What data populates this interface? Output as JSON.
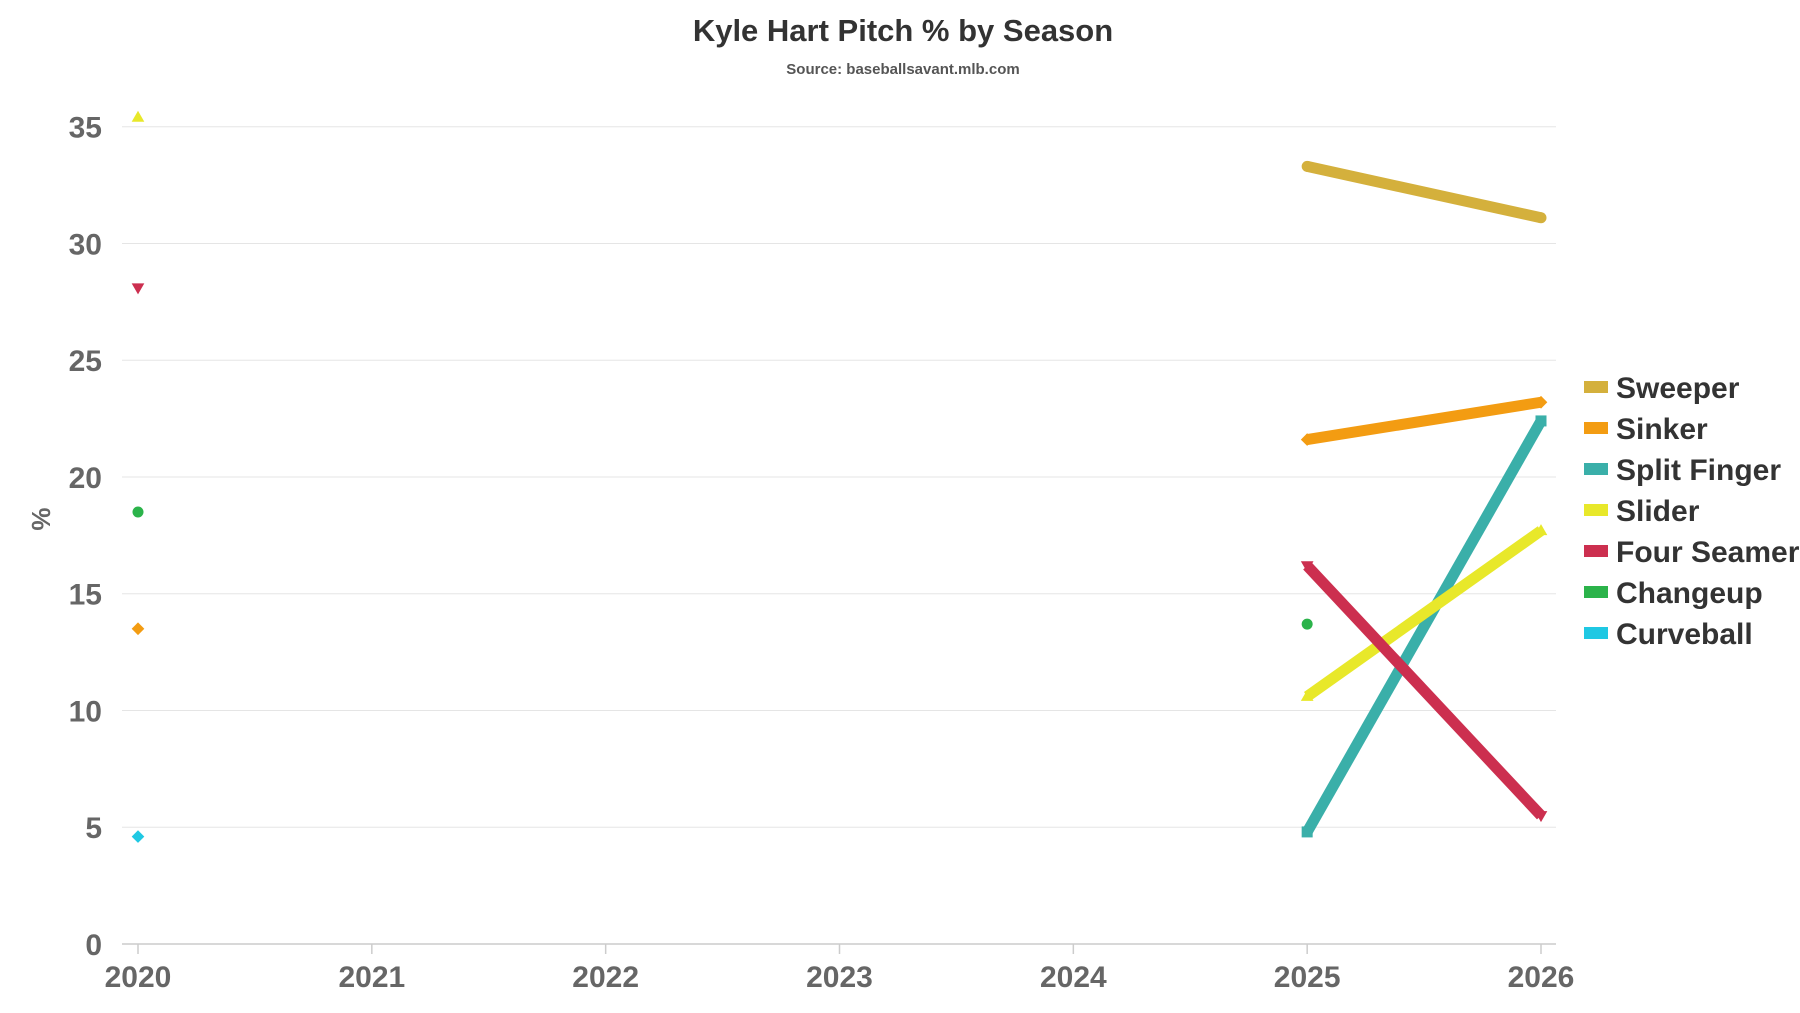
{
  "chart_data": {
    "type": "line",
    "title": "Kyle Hart Pitch % by Season",
    "subtitle": "Source: baseballsavant.mlb.com",
    "xlabel": "",
    "ylabel": "%",
    "x": [
      2020,
      2021,
      2022,
      2023,
      2024,
      2025,
      2026
    ],
    "x_tick_labels": [
      "2020",
      "2021",
      "2022",
      "2023",
      "2024",
      "2025",
      "2026"
    ],
    "ylim": [
      0,
      37
    ],
    "y_ticks": [
      0,
      5,
      10,
      15,
      20,
      25,
      30,
      35
    ],
    "y_tick_labels": [
      "0",
      "5",
      "10",
      "15",
      "20",
      "25",
      "30",
      "35"
    ],
    "grid": "horizontal",
    "legend_position": "right",
    "series": [
      {
        "name": "Sweeper",
        "color": "#d4b03c",
        "marker": "circle",
        "values": [
          null,
          null,
          null,
          null,
          null,
          33.3,
          31.1
        ]
      },
      {
        "name": "Sinker",
        "color": "#f39c12",
        "marker": "diamond",
        "values": [
          13.5,
          null,
          null,
          null,
          null,
          21.6,
          23.2
        ]
      },
      {
        "name": "Split Finger",
        "color": "#3aafa9",
        "marker": "square",
        "values": [
          null,
          null,
          null,
          null,
          null,
          4.8,
          22.4
        ]
      },
      {
        "name": "Slider",
        "color": "#e8e82a",
        "marker": "triangle-up",
        "values": [
          35.4,
          null,
          null,
          null,
          null,
          10.6,
          17.7
        ]
      },
      {
        "name": "Four Seamer",
        "color": "#cc2f4f",
        "marker": "triangle-down",
        "values": [
          28.1,
          null,
          null,
          null,
          null,
          16.2,
          5.5
        ]
      },
      {
        "name": "Changeup",
        "color": "#2bb34a",
        "marker": "circle",
        "values": [
          18.5,
          null,
          null,
          null,
          null,
          13.7,
          null
        ]
      },
      {
        "name": "Curveball",
        "color": "#1fc8e3",
        "marker": "diamond",
        "values": [
          4.6,
          null,
          null,
          null,
          null,
          null,
          null
        ]
      }
    ]
  }
}
